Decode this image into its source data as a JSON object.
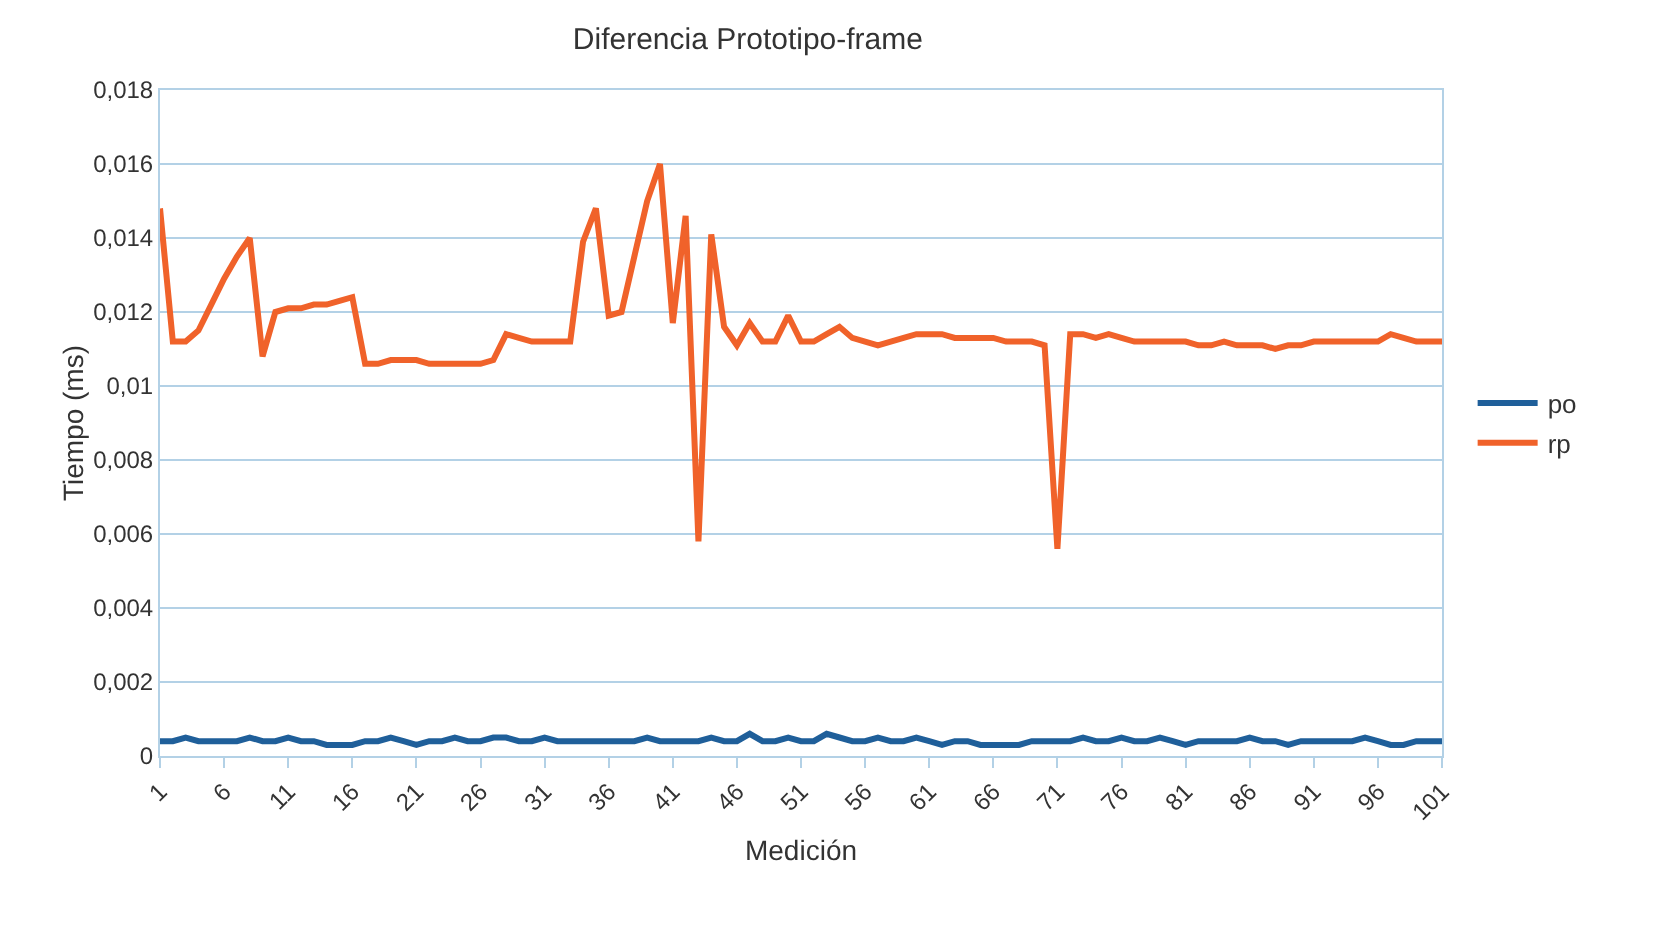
{
  "chart_data": {
    "type": "line",
    "title": "Diferencia Prototipo-frame",
    "xlabel": "Medición",
    "ylabel": "Tiempo (ms)",
    "x": [
      1,
      2,
      3,
      4,
      5,
      6,
      7,
      8,
      9,
      10,
      11,
      12,
      13,
      14,
      15,
      16,
      17,
      18,
      19,
      20,
      21,
      22,
      23,
      24,
      25,
      26,
      27,
      28,
      29,
      30,
      31,
      32,
      33,
      34,
      35,
      36,
      37,
      38,
      39,
      40,
      41,
      42,
      43,
      44,
      45,
      46,
      47,
      48,
      49,
      50,
      51,
      52,
      53,
      54,
      55,
      56,
      57,
      58,
      59,
      60,
      61,
      62,
      63,
      64,
      65,
      66,
      67,
      68,
      69,
      70,
      71,
      72,
      73,
      74,
      75,
      76,
      77,
      78,
      79,
      80,
      81,
      82,
      83,
      84,
      85,
      86,
      87,
      88,
      89,
      90,
      91,
      92,
      93,
      94,
      95,
      96,
      97,
      98,
      99,
      100,
      101
    ],
    "series": [
      {
        "name": "po",
        "color": "#1f5f9a",
        "values": [
          0.0004,
          0.0004,
          0.0005,
          0.0004,
          0.0004,
          0.0004,
          0.0004,
          0.0005,
          0.0004,
          0.0004,
          0.0005,
          0.0004,
          0.0004,
          0.0003,
          0.0003,
          0.0003,
          0.0004,
          0.0004,
          0.0005,
          0.0004,
          0.0003,
          0.0004,
          0.0004,
          0.0005,
          0.0004,
          0.0004,
          0.0005,
          0.0005,
          0.0004,
          0.0004,
          0.0005,
          0.0004,
          0.0004,
          0.0004,
          0.0004,
          0.0004,
          0.0004,
          0.0004,
          0.0005,
          0.0004,
          0.0004,
          0.0004,
          0.0004,
          0.0005,
          0.0004,
          0.0004,
          0.0006,
          0.0004,
          0.0004,
          0.0005,
          0.0004,
          0.0004,
          0.0006,
          0.0005,
          0.0004,
          0.0004,
          0.0005,
          0.0004,
          0.0004,
          0.0005,
          0.0004,
          0.0003,
          0.0004,
          0.0004,
          0.0003,
          0.0003,
          0.0003,
          0.0003,
          0.0004,
          0.0004,
          0.0004,
          0.0004,
          0.0005,
          0.0004,
          0.0004,
          0.0005,
          0.0004,
          0.0004,
          0.0005,
          0.0004,
          0.0003,
          0.0004,
          0.0004,
          0.0004,
          0.0004,
          0.0005,
          0.0004,
          0.0004,
          0.0003,
          0.0004,
          0.0004,
          0.0004,
          0.0004,
          0.0004,
          0.0005,
          0.0004,
          0.0003,
          0.0003,
          0.0004,
          0.0004,
          0.0004
        ]
      },
      {
        "name": "rp",
        "color": "#f0622a",
        "values": [
          0.0148,
          0.0112,
          0.0112,
          0.0115,
          0.0122,
          0.0129,
          0.0135,
          0.014,
          0.0108,
          0.012,
          0.0121,
          0.0121,
          0.0122,
          0.0122,
          0.0123,
          0.0124,
          0.0106,
          0.0106,
          0.0107,
          0.0107,
          0.0107,
          0.0106,
          0.0106,
          0.0106,
          0.0106,
          0.0106,
          0.0107,
          0.0114,
          0.0113,
          0.0112,
          0.0112,
          0.0112,
          0.0112,
          0.0139,
          0.0148,
          0.0119,
          0.012,
          0.0135,
          0.015,
          0.016,
          0.0117,
          0.0146,
          0.0058,
          0.0141,
          0.0116,
          0.0111,
          0.0117,
          0.0112,
          0.0112,
          0.0119,
          0.0112,
          0.0112,
          0.0114,
          0.0116,
          0.0113,
          0.0112,
          0.0111,
          0.0112,
          0.0113,
          0.0114,
          0.0114,
          0.0114,
          0.0113,
          0.0113,
          0.0113,
          0.0113,
          0.0112,
          0.0112,
          0.0112,
          0.0111,
          0.0056,
          0.0114,
          0.0114,
          0.0113,
          0.0114,
          0.0113,
          0.0112,
          0.0112,
          0.0112,
          0.0112,
          0.0112,
          0.0111,
          0.0111,
          0.0112,
          0.0111,
          0.0111,
          0.0111,
          0.011,
          0.0111,
          0.0111,
          0.0112,
          0.0112,
          0.0112,
          0.0112,
          0.0112,
          0.0112,
          0.0114,
          0.0113,
          0.0112,
          0.0112,
          0.0112
        ]
      }
    ],
    "xlim": [
      1,
      101
    ],
    "xticks": [
      1,
      6,
      11,
      16,
      21,
      26,
      31,
      36,
      41,
      46,
      51,
      56,
      61,
      66,
      71,
      76,
      81,
      86,
      91,
      96,
      101
    ],
    "ylim": [
      0,
      0.018
    ],
    "yticks": [
      {
        "value": 0,
        "label": "0"
      },
      {
        "value": 0.002,
        "label": "0,002"
      },
      {
        "value": 0.004,
        "label": "0,004"
      },
      {
        "value": 0.006,
        "label": "0,006"
      },
      {
        "value": 0.008,
        "label": "0,008"
      },
      {
        "value": 0.01,
        "label": "0,01"
      },
      {
        "value": 0.012,
        "label": "0,012"
      },
      {
        "value": 0.014,
        "label": "0,014"
      },
      {
        "value": 0.016,
        "label": "0,016"
      },
      {
        "value": 0.018,
        "label": "0,018"
      }
    ],
    "grid": "y",
    "legend": "right",
    "marker": "none",
    "line_style": "solid"
  }
}
